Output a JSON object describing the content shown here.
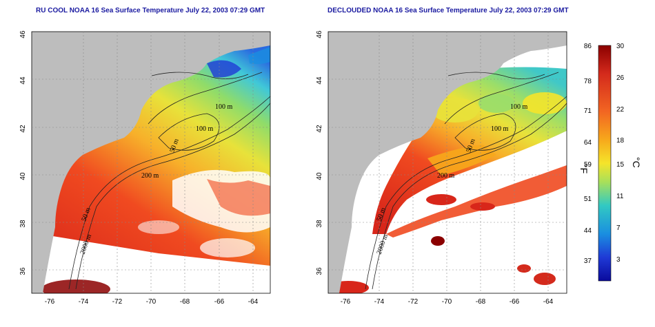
{
  "panels": [
    {
      "title": "RU COOL NOAA 16 Sea Surface Temperature July 22, 2003 07:29 GMT",
      "lat_ticks": [
        "46",
        "44",
        "42",
        "40",
        "38",
        "36"
      ],
      "lon_ticks": [
        "-76",
        "-74",
        "-72",
        "-70",
        "-68",
        "-66",
        "-64"
      ],
      "contour_labels": [
        "100 m",
        "100 m",
        "50 m",
        "200 m",
        "50 m",
        "2000 m"
      ]
    },
    {
      "title": "DECLOUDED NOAA 16 Sea Surface Temperature July 22, 2003 07:29 GMT",
      "lat_ticks": [
        "46",
        "44",
        "42",
        "40",
        "38",
        "36"
      ],
      "lon_ticks": [
        "-76",
        "-74",
        "-72",
        "-70",
        "-68",
        "-66",
        "-64"
      ],
      "contour_labels": [
        "100 m",
        "100 m",
        "50 m",
        "200 m",
        "50 m",
        "2000 m"
      ]
    }
  ],
  "colorbar": {
    "fahrenheit_ticks": [
      "86",
      "78",
      "71",
      "64",
      "59",
      "51",
      "44",
      "37"
    ],
    "celsius_ticks": [
      "30",
      "26",
      "22",
      "18",
      "15",
      "11",
      "7",
      "3"
    ],
    "fahrenheit_unit": "°F",
    "celsius_unit": "°C",
    "colors": [
      "#8b0000",
      "#d42a1c",
      "#f26522",
      "#f7a81b",
      "#f5e42a",
      "#a8e05a",
      "#32c9c2",
      "#1a8fe0",
      "#1f3ad6",
      "#0a0a9c"
    ]
  },
  "colors": {
    "land": "#bdbdbd",
    "cloud": "#ffffff",
    "title": "#1a1aa0"
  }
}
